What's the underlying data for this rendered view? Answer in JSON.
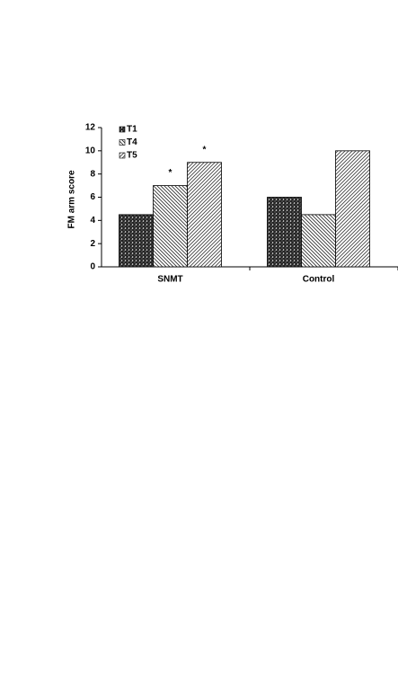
{
  "chart_data": {
    "type": "bar",
    "y_label": "FM arm score",
    "categories": [
      "SNMT",
      "Control"
    ],
    "series": [
      {
        "name": "T1",
        "color": "#222222",
        "hatch": "cross",
        "values": [
          4.5,
          6
        ]
      },
      {
        "name": "T4",
        "color": "#333333",
        "hatch": "backslash",
        "values": [
          7,
          4.5
        ]
      },
      {
        "name": "T5",
        "color": "#444444",
        "hatch": "slash",
        "values": [
          9,
          10
        ]
      }
    ],
    "annotations": [
      {
        "text": "*",
        "series": "T4",
        "category": "SNMT"
      },
      {
        "text": "*",
        "series": "T5",
        "category": "SNMT"
      }
    ],
    "ylim": [
      0,
      12
    ],
    "yticks": [
      0,
      2,
      4,
      6,
      8,
      10,
      12
    ],
    "grid": false,
    "legend": "top-left"
  }
}
